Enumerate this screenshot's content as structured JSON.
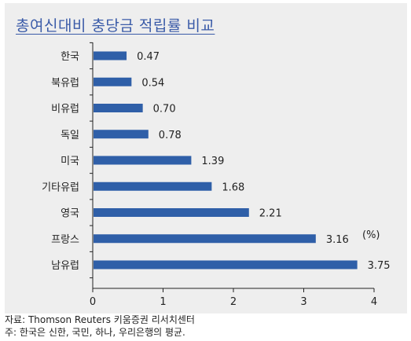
{
  "chart_data": {
    "type": "bar",
    "orientation": "horizontal",
    "title": "총여신대비 충당금 적립률 비교",
    "categories": [
      "한국",
      "북유럽",
      "비유럽",
      "독일",
      "미국",
      "기타유럽",
      "영국",
      "프랑스",
      "남유럽"
    ],
    "values": [
      0.47,
      0.54,
      0.7,
      0.78,
      1.39,
      1.68,
      2.21,
      3.16,
      3.75
    ],
    "value_labels": [
      "0.47",
      "0.54",
      "0.70",
      "0.78",
      "1.39",
      "1.68",
      "2.21",
      "3.16",
      "3.75"
    ],
    "xlim": [
      0,
      4
    ],
    "xticks": [
      "0",
      "1",
      "2",
      "3",
      "4"
    ],
    "unit_annotation": "(%)",
    "bar_color": "#2f5fa8",
    "grid": false
  },
  "footnotes": {
    "source": "자료: Thomson Reuters 키움증권 리서치센터",
    "note": "주: 한국은 신한, 국민, 하나, 우리은행의 평균."
  }
}
